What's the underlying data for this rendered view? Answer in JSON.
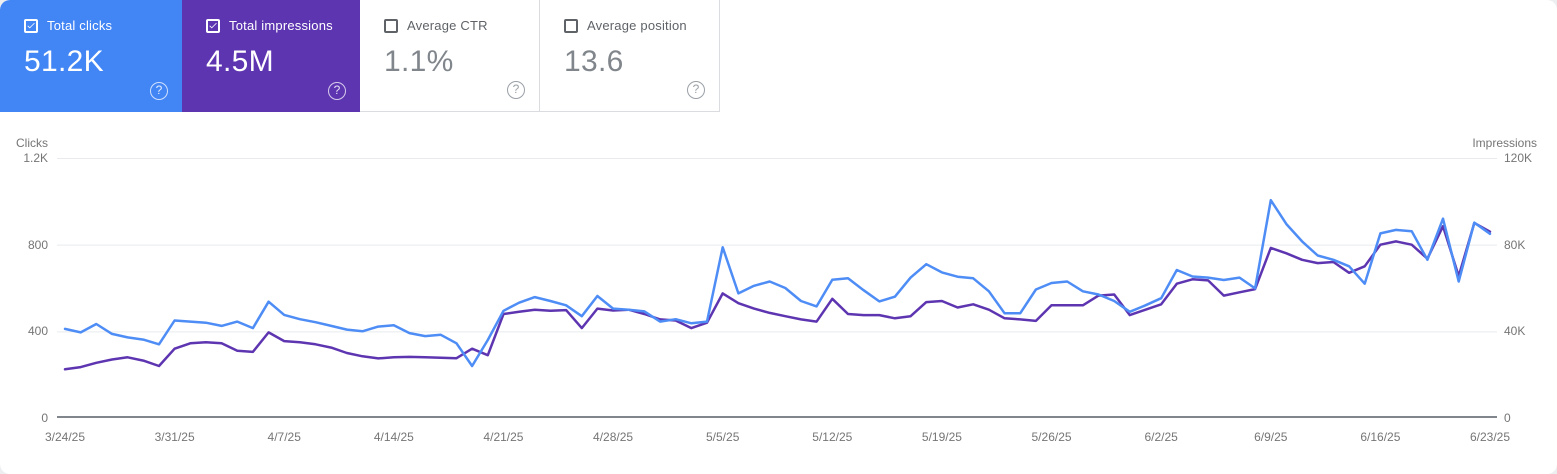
{
  "cards": [
    {
      "label": "Total clicks",
      "value": "51.2K",
      "checked": true,
      "bg": "#4285f4"
    },
    {
      "label": "Total impressions",
      "value": "4.5M",
      "checked": true,
      "bg": "#5e35b1"
    },
    {
      "label": "Average CTR",
      "value": "1.1%",
      "checked": false,
      "bg": "#ffffff"
    },
    {
      "label": "Average position",
      "value": "13.6",
      "checked": false,
      "bg": "#ffffff"
    }
  ],
  "icons": {
    "help": "?",
    "check": "checkmark"
  },
  "chart_data": {
    "type": "line",
    "x_start": "3/24/25",
    "x_end": "6/23/25",
    "x_interval": "daily",
    "x_tick_labels": [
      "3/24/25",
      "3/31/25",
      "4/7/25",
      "4/14/25",
      "4/21/25",
      "4/28/25",
      "5/5/25",
      "5/12/25",
      "5/19/25",
      "5/26/25",
      "6/2/25",
      "6/9/25",
      "6/16/25",
      "6/23/25"
    ],
    "grid": "horizontal-only",
    "yaxis_left": {
      "title": "Clicks",
      "ticks": [
        "1.2K",
        "800",
        "400",
        "0"
      ],
      "range": [
        0,
        1200
      ]
    },
    "yaxis_right": {
      "title": "Impressions",
      "ticks": [
        "120K",
        "80K",
        "40K",
        "0"
      ],
      "range": [
        0,
        120000
      ]
    },
    "series": [
      {
        "name": "Total clicks",
        "axis": "left",
        "color": "#4e8df5",
        "values": [
          411,
          395,
          434,
          388,
          372,
          362,
          340,
          450,
          445,
          440,
          425,
          445,
          415,
          537,
          476,
          456,
          442,
          425,
          408,
          400,
          422,
          428,
          392,
          378,
          384,
          345,
          240,
          360,
          495,
          532,
          558,
          540,
          520,
          470,
          563,
          505,
          500,
          492,
          445,
          456,
          437,
          445,
          788,
          575,
          610,
          630,
          600,
          540,
          515,
          638,
          645,
          590,
          538,
          560,
          648,
          710,
          672,
          652,
          645,
          585,
          483,
          483,
          593,
          623,
          630,
          585,
          570,
          540,
          490,
          520,
          553,
          683,
          653,
          648,
          637,
          648,
          598,
          1005,
          895,
          815,
          750,
          730,
          700,
          620,
          852,
          868,
          862,
          730,
          920,
          630,
          902,
          850
        ]
      },
      {
        "name": "Total impressions",
        "axis": "right",
        "color": "#5e35b1",
        "values": [
          22500,
          23500,
          25500,
          27000,
          28000,
          26500,
          24000,
          32000,
          34500,
          35000,
          34500,
          31000,
          30500,
          39500,
          35500,
          35000,
          34000,
          32500,
          30000,
          28500,
          27500,
          28000,
          28200,
          28000,
          27800,
          27600,
          32000,
          29000,
          48000,
          49000,
          50000,
          49500,
          49800,
          41500,
          50500,
          49600,
          50000,
          48000,
          45500,
          45000,
          41500,
          44000,
          57500,
          53000,
          50500,
          48500,
          47000,
          45500,
          44500,
          55000,
          48000,
          47500,
          47500,
          46000,
          47000,
          53500,
          54000,
          51000,
          52500,
          50000,
          46000,
          45500,
          44800,
          52000,
          52000,
          52000,
          56500,
          57000,
          47500,
          50000,
          52500,
          62000,
          64000,
          63500,
          56500,
          58000,
          59500,
          78500,
          76000,
          73000,
          71500,
          72000,
          67000,
          70000,
          80000,
          81500,
          80000,
          73500,
          88500,
          65500,
          90000,
          86000
        ]
      }
    ],
    "gridline_color": "#e8eaed",
    "axis_line_color": "#80868b"
  }
}
